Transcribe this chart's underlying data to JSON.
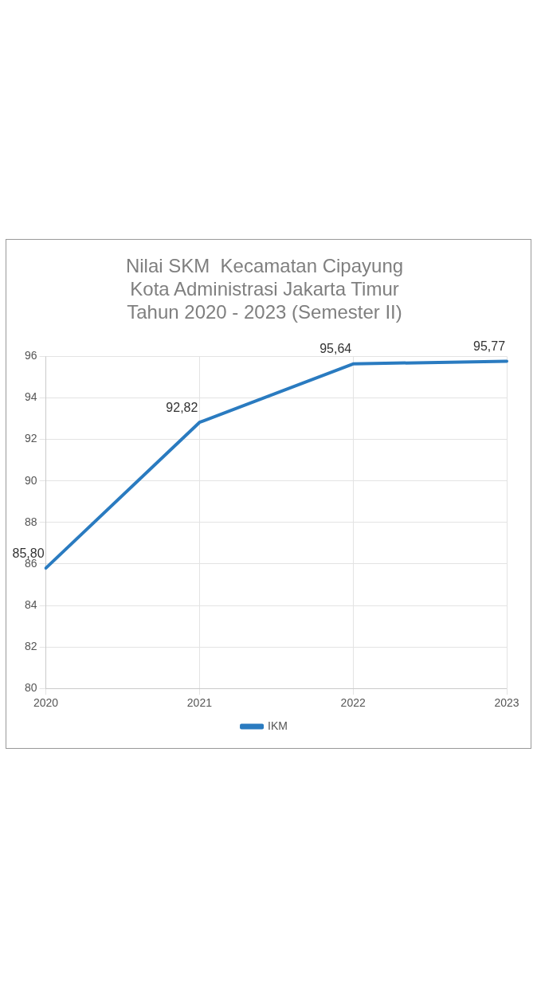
{
  "chart_data": {
    "type": "line",
    "title": "Nilai SKM  Kecamatan Cipayung\nKota Administrasi Jakarta Timur\nTahun 2020 - 2023 (Semester II)",
    "categories": [
      "2020",
      "2021",
      "2022",
      "2023"
    ],
    "series": [
      {
        "name": "IKM",
        "color": "#2a7bc0",
        "values": [
          85.8,
          92.82,
          95.64,
          95.77
        ],
        "value_labels": [
          "85,80",
          "92,82",
          "95,64",
          "95,77"
        ]
      }
    ],
    "ylim": [
      80,
      96
    ],
    "yticks": [
      80,
      82,
      84,
      86,
      88,
      90,
      92,
      94,
      96
    ],
    "grid": true,
    "legend": "bottom",
    "marker": "none",
    "line_style": "solid"
  }
}
